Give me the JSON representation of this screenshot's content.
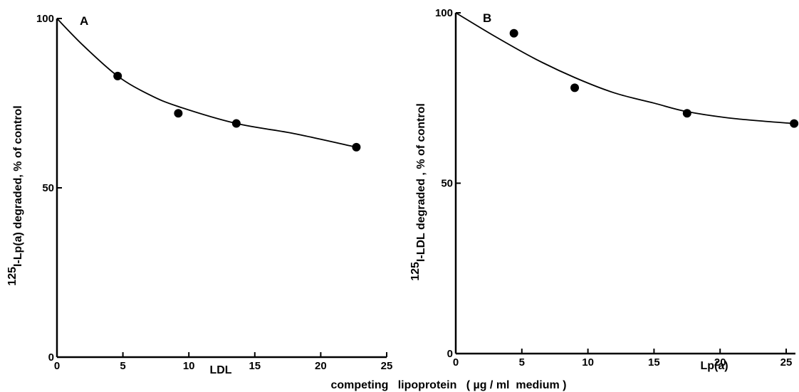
{
  "chart_data": [
    {
      "type": "scatter",
      "panel_label": "A",
      "ylabel_main": "I-Lp(a) degraded, ",
      "ylabel_superscript": "125",
      "ylabel_unit": "% of control",
      "xlabel": "LDL",
      "x_ticks": [
        "0",
        "5",
        "10",
        "15",
        "20",
        "25"
      ],
      "y_ticks": [
        "0",
        "50",
        "100"
      ],
      "xlim": [
        0,
        25
      ],
      "ylim": [
        0,
        100
      ],
      "grid": false,
      "series": [
        {
          "points": [
            {
              "x": 4.6,
              "y": 83
            },
            {
              "x": 9.2,
              "y": 72
            },
            {
              "x": 13.6,
              "y": 69
            },
            {
              "x": 22.7,
              "y": 62
            }
          ],
          "fit_curve": [
            {
              "x": 0,
              "y": 100
            },
            {
              "x": 2,
              "y": 92
            },
            {
              "x": 4.6,
              "y": 83
            },
            {
              "x": 7,
              "y": 77.5
            },
            {
              "x": 9.2,
              "y": 74
            },
            {
              "x": 13.6,
              "y": 69
            },
            {
              "x": 18,
              "y": 66
            },
            {
              "x": 22.7,
              "y": 62
            }
          ]
        }
      ]
    },
    {
      "type": "scatter",
      "panel_label": "B",
      "ylabel_main": "I-LDL degraded , ",
      "ylabel_superscript": "125",
      "ylabel_unit": "% of control",
      "xlabel": "Lp(a)",
      "x_ticks": [
        "0",
        "5",
        "10",
        "15",
        "20",
        "25"
      ],
      "y_ticks": [
        "0",
        "50",
        "100"
      ],
      "xlim": [
        0,
        25.7
      ],
      "ylim": [
        0,
        100
      ],
      "grid": false,
      "series": [
        {
          "points": [
            {
              "x": 4.4,
              "y": 94
            },
            {
              "x": 9.0,
              "y": 78
            },
            {
              "x": 17.5,
              "y": 70.5
            },
            {
              "x": 25.6,
              "y": 67.5
            }
          ],
          "fit_curve": [
            {
              "x": 0,
              "y": 100
            },
            {
              "x": 3,
              "y": 93
            },
            {
              "x": 6,
              "y": 86.5
            },
            {
              "x": 9,
              "y": 81
            },
            {
              "x": 12,
              "y": 76.5
            },
            {
              "x": 15,
              "y": 73.5
            },
            {
              "x": 17.5,
              "y": 71
            },
            {
              "x": 21,
              "y": 69
            },
            {
              "x": 25.6,
              "y": 67.5
            }
          ]
        }
      ]
    }
  ],
  "shared_xlabel": "competing   lipoprotein   ( µg / ml  medium )"
}
